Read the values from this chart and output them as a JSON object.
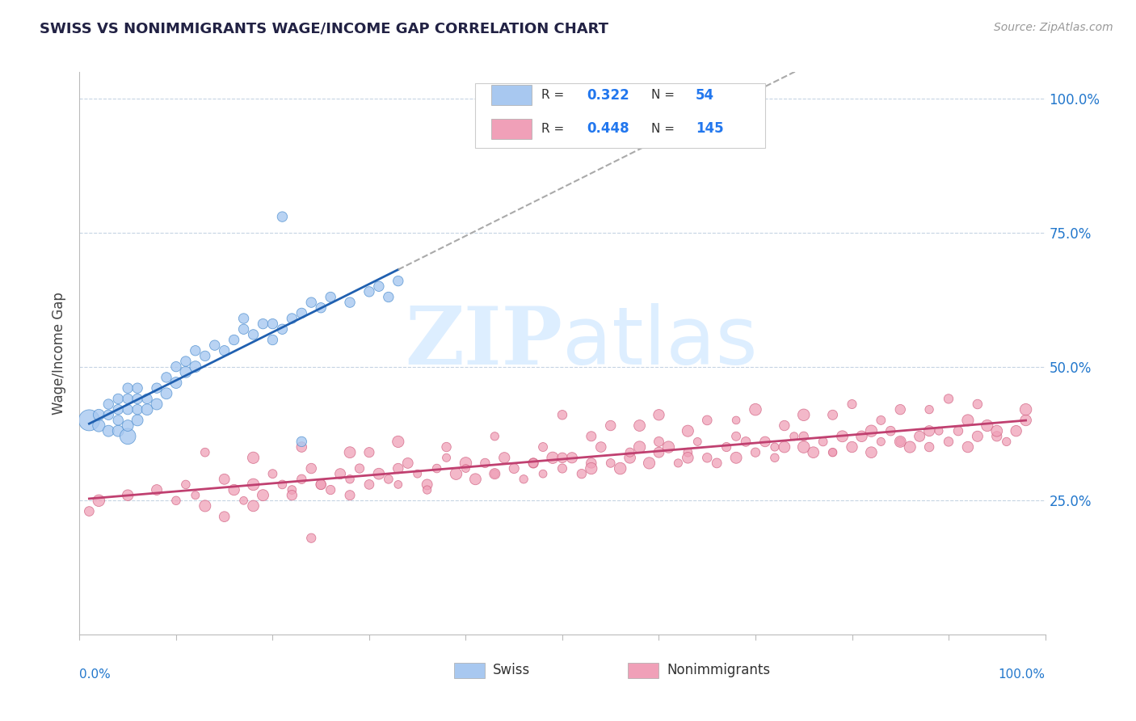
{
  "title": "SWISS VS NONIMMIGRANTS WAGE/INCOME GAP CORRELATION CHART",
  "source_text": "Source: ZipAtlas.com",
  "ylabel": "Wage/Income Gap",
  "swiss_R": 0.322,
  "swiss_N": 54,
  "nonimm_R": 0.448,
  "nonimm_N": 145,
  "swiss_color": "#a8c8f0",
  "swiss_edge_color": "#5090d0",
  "swiss_line_color": "#2060b0",
  "nonimm_color": "#f0a0b8",
  "nonimm_edge_color": "#d06080",
  "nonimm_line_color": "#c04070",
  "dash_line_color": "#aaaaaa",
  "watermark_color": "#ddeeff",
  "ylim_low": 0.0,
  "ylim_high": 1.05,
  "xlim_low": 0.0,
  "xlim_high": 1.0,
  "y_ticks": [
    0.25,
    0.5,
    0.75,
    1.0
  ],
  "y_tick_labels": [
    "25.0%",
    "50.0%",
    "75.0%",
    "100.0%"
  ],
  "swiss_x": [
    0.01,
    0.02,
    0.02,
    0.03,
    0.03,
    0.03,
    0.04,
    0.04,
    0.04,
    0.04,
    0.05,
    0.05,
    0.05,
    0.05,
    0.05,
    0.06,
    0.06,
    0.06,
    0.06,
    0.07,
    0.07,
    0.08,
    0.08,
    0.09,
    0.09,
    0.1,
    0.1,
    0.11,
    0.11,
    0.12,
    0.12,
    0.13,
    0.14,
    0.15,
    0.16,
    0.17,
    0.17,
    0.18,
    0.19,
    0.2,
    0.2,
    0.21,
    0.22,
    0.23,
    0.24,
    0.25,
    0.26,
    0.28,
    0.3,
    0.31,
    0.32,
    0.33,
    0.21,
    0.23
  ],
  "swiss_y": [
    0.4,
    0.39,
    0.41,
    0.38,
    0.41,
    0.43,
    0.38,
    0.4,
    0.42,
    0.44,
    0.37,
    0.39,
    0.42,
    0.44,
    0.46,
    0.4,
    0.42,
    0.44,
    0.46,
    0.42,
    0.44,
    0.43,
    0.46,
    0.45,
    0.48,
    0.47,
    0.5,
    0.49,
    0.51,
    0.5,
    0.53,
    0.52,
    0.54,
    0.53,
    0.55,
    0.57,
    0.59,
    0.56,
    0.58,
    0.55,
    0.58,
    0.57,
    0.59,
    0.6,
    0.62,
    0.61,
    0.63,
    0.62,
    0.64,
    0.65,
    0.63,
    0.66,
    0.78,
    0.36
  ],
  "swiss_sizes": [
    350,
    120,
    100,
    100,
    80,
    80,
    100,
    80,
    80,
    80,
    200,
    100,
    80,
    80,
    80,
    100,
    80,
    80,
    80,
    100,
    80,
    100,
    80,
    100,
    80,
    100,
    80,
    100,
    80,
    100,
    80,
    80,
    80,
    80,
    80,
    80,
    80,
    80,
    80,
    80,
    80,
    80,
    80,
    80,
    80,
    80,
    80,
    80,
    80,
    80,
    80,
    80,
    80,
    80
  ],
  "nonimm_x": [
    0.01,
    0.02,
    0.05,
    0.08,
    0.1,
    0.11,
    0.12,
    0.13,
    0.15,
    0.16,
    0.17,
    0.18,
    0.19,
    0.2,
    0.21,
    0.22,
    0.23,
    0.24,
    0.25,
    0.26,
    0.27,
    0.28,
    0.29,
    0.3,
    0.3,
    0.31,
    0.32,
    0.33,
    0.34,
    0.35,
    0.36,
    0.37,
    0.38,
    0.39,
    0.4,
    0.41,
    0.42,
    0.43,
    0.44,
    0.45,
    0.46,
    0.47,
    0.48,
    0.49,
    0.5,
    0.51,
    0.52,
    0.53,
    0.54,
    0.55,
    0.56,
    0.57,
    0.58,
    0.59,
    0.6,
    0.61,
    0.62,
    0.63,
    0.64,
    0.65,
    0.66,
    0.67,
    0.68,
    0.69,
    0.7,
    0.71,
    0.72,
    0.73,
    0.74,
    0.75,
    0.76,
    0.77,
    0.78,
    0.79,
    0.8,
    0.81,
    0.82,
    0.83,
    0.84,
    0.85,
    0.86,
    0.87,
    0.88,
    0.89,
    0.9,
    0.91,
    0.92,
    0.93,
    0.94,
    0.95,
    0.96,
    0.97,
    0.98,
    0.15,
    0.18,
    0.22,
    0.25,
    0.28,
    0.33,
    0.36,
    0.4,
    0.43,
    0.47,
    0.5,
    0.53,
    0.57,
    0.6,
    0.63,
    0.68,
    0.72,
    0.75,
    0.78,
    0.82,
    0.85,
    0.88,
    0.92,
    0.95,
    0.13,
    0.18,
    0.23,
    0.28,
    0.33,
    0.38,
    0.43,
    0.48,
    0.53,
    0.58,
    0.63,
    0.68,
    0.73,
    0.78,
    0.83,
    0.88,
    0.93,
    0.98,
    0.5,
    0.55,
    0.6,
    0.65,
    0.7,
    0.75,
    0.8,
    0.85,
    0.9,
    0.24
  ],
  "nonimm_y": [
    0.23,
    0.25,
    0.26,
    0.27,
    0.25,
    0.28,
    0.26,
    0.24,
    0.29,
    0.27,
    0.25,
    0.28,
    0.26,
    0.3,
    0.28,
    0.27,
    0.29,
    0.31,
    0.28,
    0.27,
    0.3,
    0.29,
    0.31,
    0.28,
    0.34,
    0.3,
    0.29,
    0.31,
    0.32,
    0.3,
    0.28,
    0.31,
    0.33,
    0.3,
    0.32,
    0.29,
    0.32,
    0.3,
    0.33,
    0.31,
    0.29,
    0.32,
    0.3,
    0.33,
    0.31,
    0.33,
    0.3,
    0.32,
    0.35,
    0.32,
    0.31,
    0.33,
    0.35,
    0.32,
    0.34,
    0.35,
    0.32,
    0.34,
    0.36,
    0.33,
    0.32,
    0.35,
    0.33,
    0.36,
    0.34,
    0.36,
    0.33,
    0.35,
    0.37,
    0.35,
    0.34,
    0.36,
    0.34,
    0.37,
    0.35,
    0.37,
    0.34,
    0.36,
    0.38,
    0.36,
    0.35,
    0.37,
    0.35,
    0.38,
    0.36,
    0.38,
    0.35,
    0.37,
    0.39,
    0.37,
    0.36,
    0.38,
    0.4,
    0.22,
    0.24,
    0.26,
    0.28,
    0.26,
    0.28,
    0.27,
    0.31,
    0.3,
    0.32,
    0.33,
    0.31,
    0.34,
    0.36,
    0.33,
    0.37,
    0.35,
    0.37,
    0.34,
    0.38,
    0.36,
    0.38,
    0.4,
    0.38,
    0.34,
    0.33,
    0.35,
    0.34,
    0.36,
    0.35,
    0.37,
    0.35,
    0.37,
    0.39,
    0.38,
    0.4,
    0.39,
    0.41,
    0.4,
    0.42,
    0.43,
    0.42,
    0.41,
    0.39,
    0.41,
    0.4,
    0.42,
    0.41,
    0.43,
    0.42,
    0.44,
    0.18
  ],
  "nonimm_sizes": [
    80,
    80,
    80,
    80,
    80,
    80,
    80,
    80,
    80,
    80,
    80,
    80,
    80,
    80,
    80,
    80,
    80,
    80,
    80,
    80,
    80,
    80,
    80,
    80,
    80,
    80,
    80,
    80,
    80,
    80,
    80,
    80,
    80,
    80,
    80,
    80,
    80,
    80,
    80,
    80,
    80,
    80,
    80,
    80,
    80,
    80,
    80,
    80,
    80,
    80,
    80,
    80,
    80,
    80,
    80,
    80,
    80,
    80,
    80,
    80,
    80,
    80,
    80,
    80,
    80,
    80,
    80,
    80,
    80,
    80,
    80,
    80,
    80,
    80,
    80,
    80,
    80,
    80,
    80,
    80,
    80,
    80,
    80,
    80,
    80,
    80,
    80,
    80,
    80,
    80,
    80,
    80,
    80,
    80,
    80,
    80,
    80,
    80,
    80,
    80,
    80,
    80,
    80,
    80,
    80,
    80,
    80,
    80,
    80,
    80,
    80,
    80,
    80,
    80,
    80,
    80,
    80,
    80,
    80,
    80,
    80,
    80,
    80,
    80,
    80,
    80,
    80,
    80,
    80,
    80,
    80,
    80,
    80,
    80,
    80,
    80,
    80,
    80,
    80,
    80,
    80,
    80,
    80,
    80,
    80
  ]
}
